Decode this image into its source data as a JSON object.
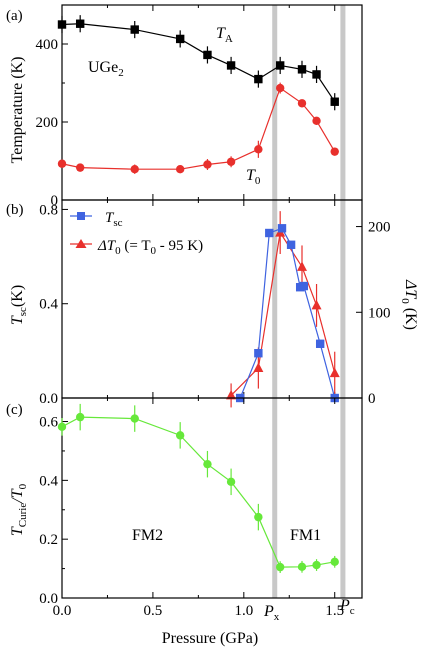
{
  "chart_data": [
    {
      "type": "line",
      "panel_label": "(a)",
      "ylabel": "Temperature (K)",
      "ylim": [
        0,
        500
      ],
      "yticks": [
        0,
        200,
        400
      ],
      "xlim": [
        0,
        1.65
      ],
      "series": [
        {
          "name": "T_A",
          "color": "#000000",
          "marker": "square",
          "x": [
            0.0,
            0.1,
            0.4,
            0.65,
            0.8,
            0.93,
            1.08,
            1.2,
            1.32,
            1.4,
            1.5
          ],
          "y": [
            450,
            452,
            437,
            413,
            372,
            345,
            310,
            345,
            335,
            322,
            252
          ],
          "yerr": [
            22,
            22,
            22,
            22,
            22,
            22,
            22,
            22,
            22,
            22,
            22
          ]
        },
        {
          "name": "T_0",
          "color": "#e8302c",
          "marker": "circle",
          "x": [
            0.0,
            0.1,
            0.4,
            0.65,
            0.8,
            0.93,
            1.08,
            1.2,
            1.32,
            1.4,
            1.5
          ],
          "y": [
            93,
            83,
            79,
            79,
            91,
            98,
            130,
            287,
            248,
            203,
            124
          ],
          "yerr": [
            8,
            10,
            12,
            10,
            14,
            14,
            22,
            14,
            10,
            10,
            10
          ]
        }
      ],
      "annotations": {
        "material": "UGe",
        "material_sub": "2",
        "ta_label": "T",
        "ta_sub": "A",
        "t0_label": "T",
        "t0_sub": "0"
      }
    },
    {
      "type": "line",
      "panel_label": "(b)",
      "ylabel_left": "T",
      "ylabel_left_sub": "sc",
      "ylabel_left_unit": "(K)",
      "ylabel_right": "ΔT",
      "ylabel_right_sub": "0",
      "ylabel_right_unit": " (K)",
      "ylim_left": [
        0,
        0.84
      ],
      "yticks_left": [
        "0.0",
        "0.4",
        "0.8"
      ],
      "ylim_right": [
        0,
        231
      ],
      "yticks_right": [
        "0",
        "100",
        "200"
      ],
      "xlim": [
        0,
        1.65
      ],
      "legend": {
        "position": "top-left",
        "entries": [
          {
            "prefix": "T",
            "sub": "sc",
            "suffix": ""
          },
          {
            "prefix": "ΔT",
            "sub": "0",
            "suffix": " (= T",
            "sub2": "0",
            "suffix2": " - 95 K)"
          }
        ]
      },
      "series": [
        {
          "name": "T_sc",
          "axis": "left",
          "color": "#3f63e0",
          "marker": "square",
          "x": [
            0.98,
            1.08,
            1.14,
            1.21,
            1.26,
            1.31,
            1.33,
            1.42,
            1.5
          ],
          "y": [
            0.0,
            0.19,
            0.7,
            0.72,
            0.65,
            0.47,
            0.475,
            0.23,
            0.0
          ],
          "yerr": [
            0,
            0,
            0,
            0,
            0,
            0,
            0,
            0,
            0
          ]
        },
        {
          "name": "ΔT_0",
          "axis": "right",
          "color": "#e8302c",
          "marker": "triangle",
          "x": [
            0.93,
            1.08,
            1.2,
            1.32,
            1.4,
            1.5
          ],
          "y": [
            3,
            35,
            193,
            153,
            108,
            29
          ],
          "yerr": [
            14,
            24,
            25,
            25,
            25,
            25
          ]
        }
      ]
    },
    {
      "type": "line",
      "panel_label": "(c)",
      "ylabel": "T",
      "ylabel_sub": "Curie",
      "ylabel_suffix": "/T",
      "ylabel_sub2": "0",
      "ylim": [
        0,
        0.68
      ],
      "yticks": [
        "0.0",
        "0.2",
        "0.4",
        "0.6"
      ],
      "xlim": [
        0,
        1.65
      ],
      "xlabel": "Pressure (GPa)",
      "xticks": [
        "0.0",
        "0.5",
        "1.0",
        "1.5"
      ],
      "series": [
        {
          "name": "T_Curie/T_0",
          "color": "#66e83a",
          "marker": "circle",
          "x": [
            0.0,
            0.1,
            0.4,
            0.65,
            0.8,
            0.93,
            1.08,
            1.2,
            1.32,
            1.4,
            1.5
          ],
          "y": [
            0.582,
            0.615,
            0.61,
            0.553,
            0.455,
            0.395,
            0.275,
            0.105,
            0.106,
            0.112,
            0.123
          ],
          "yerr": [
            0.03,
            0.045,
            0.045,
            0.045,
            0.045,
            0.045,
            0.045,
            0.02,
            0.02,
            0.02,
            0.02
          ]
        }
      ],
      "annotations": {
        "fm2": "FM2",
        "fm1": "FM1",
        "px": "P",
        "px_sub": "x",
        "pc": "P",
        "pc_sub": "c"
      }
    }
  ],
  "vertical_lines": {
    "color": "#c8c8c8",
    "x": [
      1.17,
      1.545
    ]
  }
}
